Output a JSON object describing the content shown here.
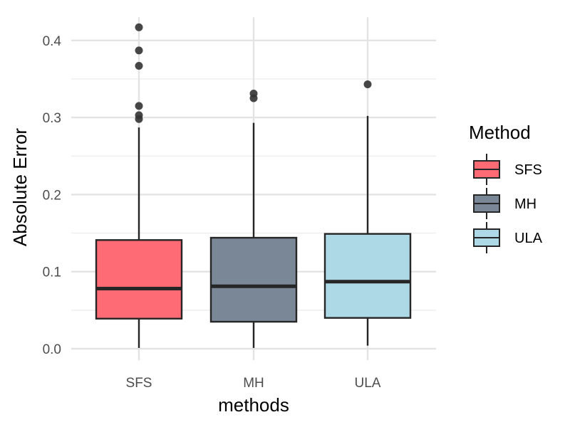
{
  "chart_data": {
    "type": "boxplot",
    "title": "",
    "xlabel": "methods",
    "ylabel": "Absolute Error",
    "ylim": [
      -0.015,
      0.43
    ],
    "y_ticks": [
      {
        "value": 0.0,
        "label": "0.0"
      },
      {
        "value": 0.1,
        "label": "0.1"
      },
      {
        "value": 0.2,
        "label": "0.2"
      },
      {
        "value": 0.3,
        "label": "0.3"
      },
      {
        "value": 0.4,
        "label": "0.4"
      }
    ],
    "y_minor_ticks": [
      0.05,
      0.15,
      0.25,
      0.35
    ],
    "grid": true,
    "legend": {
      "title": "Method",
      "placement": "right",
      "entries": [
        "SFS",
        "MH",
        "ULA"
      ]
    },
    "categories": [
      "SFS",
      "MH",
      "ULA"
    ],
    "boxes": [
      {
        "name": "SFS",
        "color": "#ff6b75",
        "whisker_low": 0.001,
        "q1": 0.039,
        "median": 0.078,
        "q3": 0.141,
        "whisker_high": 0.287,
        "outliers": [
          0.298,
          0.303,
          0.315,
          0.367,
          0.387,
          0.417
        ]
      },
      {
        "name": "MH",
        "color": "#7a8796",
        "whisker_low": 0.001,
        "q1": 0.035,
        "median": 0.081,
        "q3": 0.144,
        "whisker_high": 0.293,
        "outliers": [
          0.325,
          0.331
        ]
      },
      {
        "name": "ULA",
        "color": "#add8e6",
        "whisker_low": 0.004,
        "q1": 0.04,
        "median": 0.087,
        "q3": 0.149,
        "whisker_high": 0.302,
        "outliers": [
          0.343
        ]
      }
    ]
  }
}
